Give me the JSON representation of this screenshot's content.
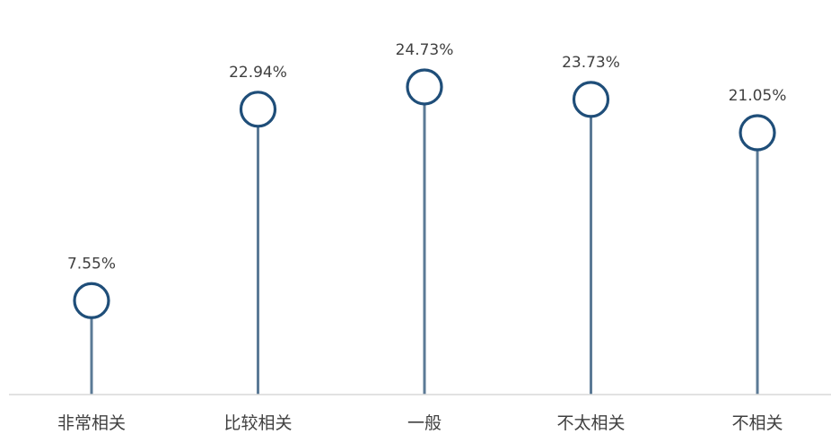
{
  "chart_data": {
    "type": "lollipop",
    "categories": [
      "非常相关",
      "比较相关",
      "一般",
      "不太相关",
      "不相关"
    ],
    "values": [
      7.55,
      22.94,
      24.73,
      23.73,
      21.05
    ],
    "data_labels": [
      "7.55%",
      "22.94%",
      "24.73%",
      "23.73%",
      "21.05%"
    ],
    "title": "",
    "xlabel": "",
    "ylabel": "",
    "ylim": [
      0,
      30
    ],
    "grid": false,
    "legend": "none",
    "colors": {
      "stem": "#5b7a96",
      "marker_stroke": "#1f4e79",
      "marker_fill": "#ffffff",
      "axis": "#d9d9d9",
      "text": "#404040"
    }
  }
}
